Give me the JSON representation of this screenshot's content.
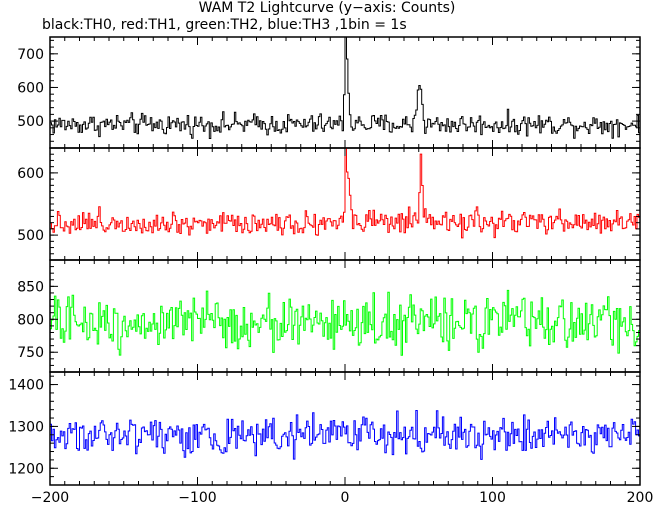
{
  "title": "WAM T2 Lightcurve (y−axis: Counts)",
  "subtitle": "black:TH0, red:TH1, green:TH2, blue:TH3 ,1bin = 1s",
  "chart_data": {
    "type": "line",
    "xlim": [
      -200,
      200
    ],
    "x_ticks": [
      -200,
      -100,
      0,
      100,
      200
    ],
    "x_tick_labels": [
      "−200",
      "−100",
      "0",
      "100",
      "200"
    ],
    "bin_seconds": 1,
    "panels": [
      {
        "name": "TH0",
        "color": "#000000",
        "ylim": [
          420,
          750
        ],
        "y_ticks": [
          500,
          600,
          700
        ],
        "baseline": 490,
        "noise": 22,
        "features": [
          {
            "x": 0,
            "value": 750,
            "width": 0.6
          },
          {
            "x": 1,
            "value": 620,
            "width": 1.2
          },
          {
            "x": 50,
            "value": 620,
            "width": 1.5
          }
        ]
      },
      {
        "name": "TH1",
        "color": "#ff0000",
        "ylim": [
          460,
          640
        ],
        "y_ticks": [
          500,
          600
        ],
        "baseline": 520,
        "noise": 14,
        "features": [
          {
            "x": 0,
            "value": 640,
            "width": 0.6
          },
          {
            "x": 2,
            "value": 600,
            "width": 1.0
          },
          {
            "x": 51,
            "value": 615,
            "width": 0.8
          }
        ]
      },
      {
        "name": "TH2",
        "color": "#00ff00",
        "ylim": [
          720,
          890
        ],
        "y_ticks": [
          750,
          800,
          850
        ],
        "baseline": 795,
        "noise": 28,
        "features": []
      },
      {
        "name": "TH3",
        "color": "#0000ff",
        "ylim": [
          1160,
          1430
        ],
        "y_ticks": [
          1200,
          1300,
          1400
        ],
        "baseline": 1280,
        "noise": 32,
        "features": []
      }
    ]
  }
}
